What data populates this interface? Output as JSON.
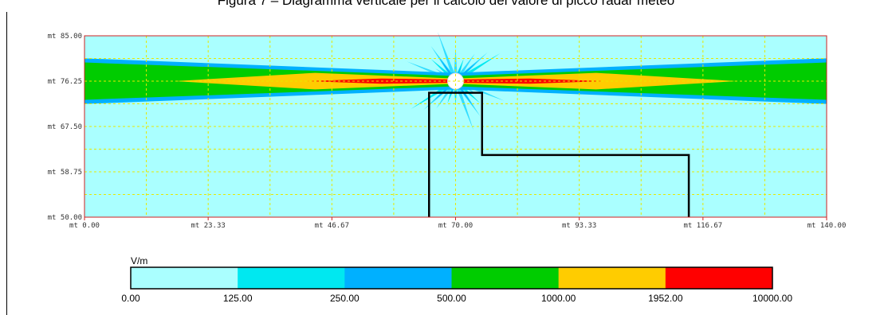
{
  "figure": {
    "caption": "Figura 7 – Diagramma verticale per il calcolo del valore di picco radar meteo"
  },
  "chart_data": {
    "type": "heatmap",
    "title": "Figura 7 – Diagramma verticale per il calcolo del valore di picco radar meteo",
    "xlabel": "",
    "ylabel": "",
    "xlim": [
      0,
      140
    ],
    "ylim": [
      50,
      85
    ],
    "grid": true,
    "x_ticks": [
      "mt 0.00",
      "mt 23.33",
      "mt 46.67",
      "mt 70.00",
      "mt 93.33",
      "mt 116.67",
      "mt 140.00"
    ],
    "x_tick_values": [
      0,
      23.33,
      46.67,
      70,
      93.33,
      116.67,
      140
    ],
    "y_ticks": [
      "mt 85.00",
      "mt 76.25",
      "mt 67.50",
      "mt 58.75",
      "mt 50.00"
    ],
    "y_tick_values": [
      85,
      76.25,
      67.5,
      58.75,
      50
    ],
    "source": {
      "x": 70,
      "y": 76.25
    },
    "field_bands": [
      {
        "level": "250.00-500.00",
        "color": "#00b0ff",
        "x_from": 0,
        "x_to": 140,
        "y_half_outer": 4.4,
        "y_half_center": 1.6
      },
      {
        "level": "500.00-1000.00",
        "color": "#00cc00",
        "x_from": 0,
        "x_to": 140,
        "y_half_outer": 3.6,
        "y_half_center": 1.0
      },
      {
        "level": "1000.00-1952.00",
        "color": "#ffcc00",
        "x_from": 17,
        "x_to": 123,
        "y_half_outer": 1.6,
        "y_half_center": 0.5
      },
      {
        "level": "1952.00-10000.00",
        "color": "#ff0000",
        "x_from": 42,
        "x_to": 98,
        "y_half_outer": 0.5,
        "y_half_center": 0.3
      }
    ],
    "building_outline": [
      [
        65,
        50
      ],
      [
        65,
        74
      ],
      [
        75,
        74
      ],
      [
        75,
        62
      ],
      [
        114,
        62
      ],
      [
        114,
        50
      ]
    ],
    "legend": {
      "unit": "V/m",
      "labels": [
        "0.00",
        "125.00",
        "250.00",
        "500.00",
        "1000.00",
        "1952.00",
        "10000.00"
      ],
      "colors": [
        "#aaffff",
        "#00e8f0",
        "#00b0ff",
        "#00cc00",
        "#ffcc00",
        "#ff0000"
      ]
    }
  }
}
